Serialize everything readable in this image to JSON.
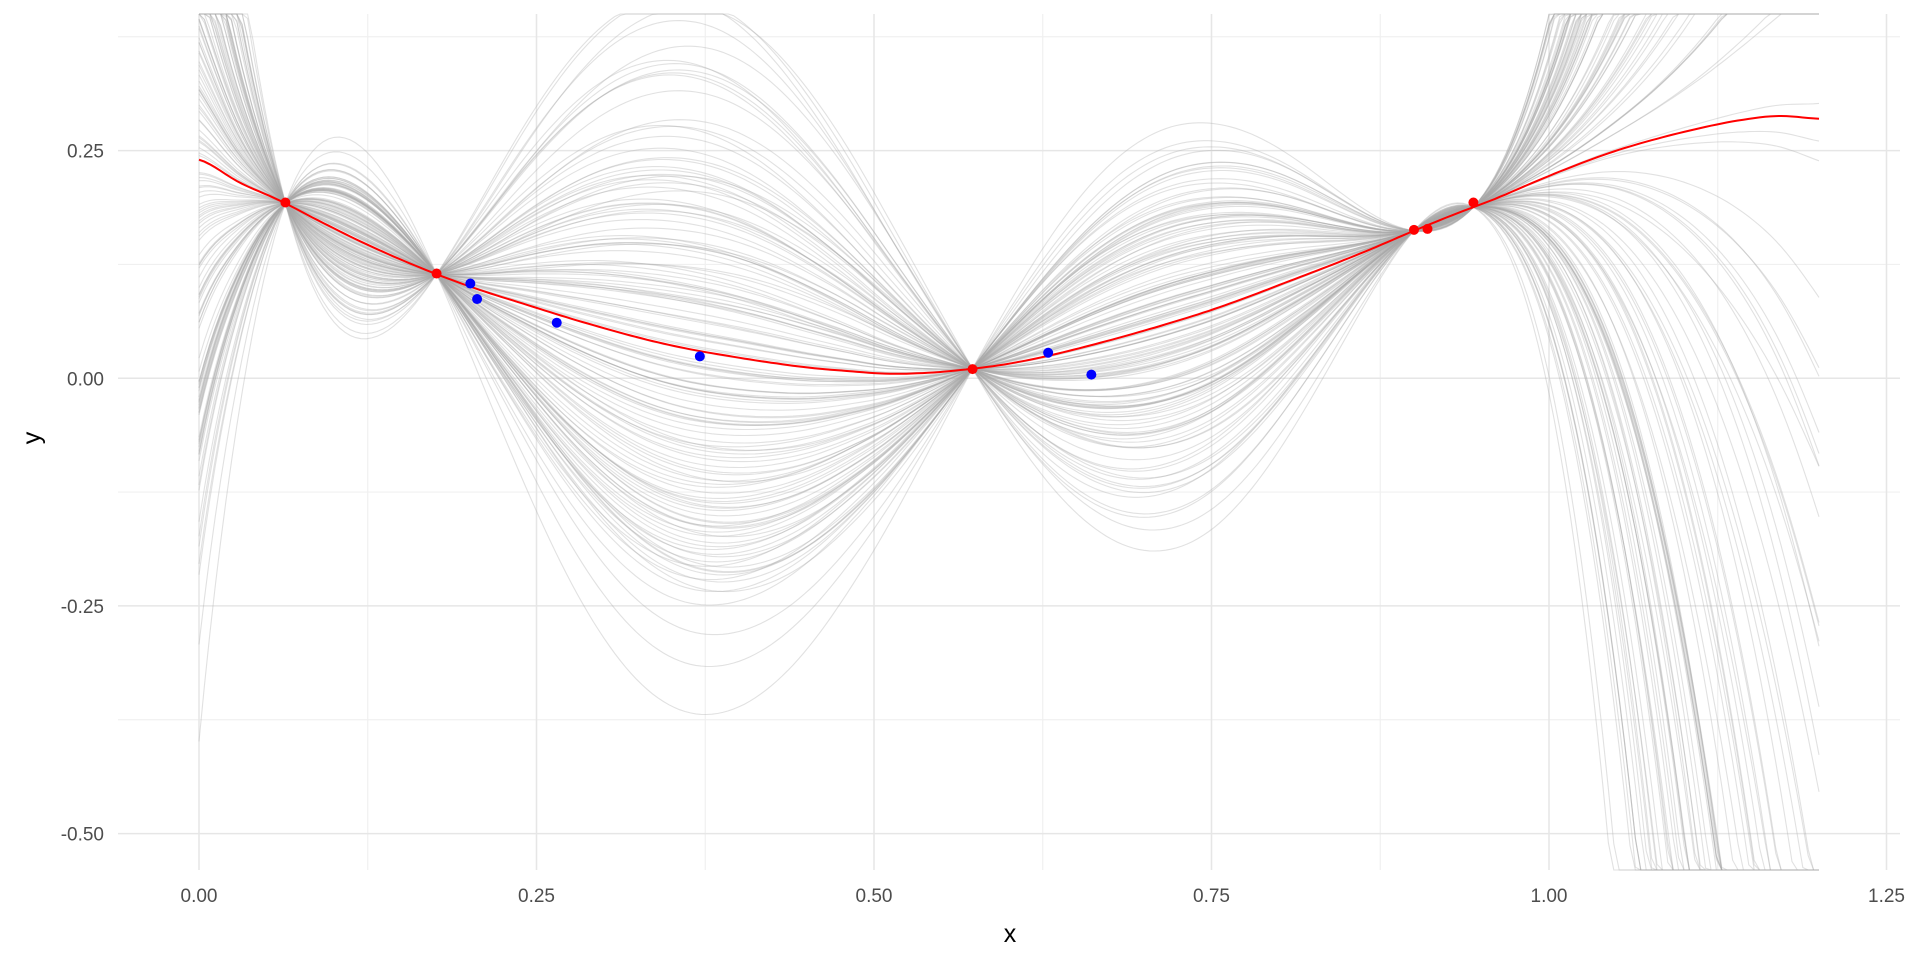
{
  "chart_data": {
    "type": "line",
    "title": "",
    "xlabel": "x",
    "ylabel": "y",
    "xlim": [
      -0.06,
      1.26
    ],
    "ylim": [
      -0.54,
      0.4
    ],
    "x_ticks": [
      {
        "value": 0.0,
        "label": "0.00"
      },
      {
        "value": 0.25,
        "label": "0.25"
      },
      {
        "value": 0.5,
        "label": "0.50"
      },
      {
        "value": 0.75,
        "label": "0.75"
      },
      {
        "value": 1.0,
        "label": "1.00"
      },
      {
        "value": 1.25,
        "label": "1.25"
      }
    ],
    "y_ticks": [
      {
        "value": -0.5,
        "label": "-0.50"
      },
      {
        "value": -0.25,
        "label": "-0.25"
      },
      {
        "value": 0.0,
        "label": "0.00"
      },
      {
        "value": 0.25,
        "label": "0.25"
      }
    ],
    "grid": true,
    "legend": "none",
    "x_range": [
      0.0,
      1.2
    ],
    "series": [
      {
        "role": "mean-fit",
        "color": "#ff0000",
        "x": [
          0.0,
          0.03,
          0.06,
          0.09,
          0.12,
          0.15,
          0.18,
          0.21,
          0.24,
          0.27,
          0.3,
          0.33,
          0.36,
          0.39,
          0.42,
          0.45,
          0.48,
          0.51,
          0.54,
          0.57,
          0.6,
          0.63,
          0.66,
          0.69,
          0.72,
          0.75,
          0.78,
          0.81,
          0.84,
          0.87,
          0.9,
          0.93,
          0.96,
          0.99,
          1.02,
          1.05,
          1.08,
          1.11,
          1.14,
          1.17,
          1.2
        ],
        "y": [
          0.24,
          0.215,
          0.195,
          0.172,
          0.15,
          0.13,
          0.112,
          0.096,
          0.082,
          0.068,
          0.055,
          0.043,
          0.033,
          0.025,
          0.018,
          0.012,
          0.008,
          0.005,
          0.006,
          0.01,
          0.016,
          0.025,
          0.036,
          0.048,
          0.061,
          0.075,
          0.091,
          0.108,
          0.125,
          0.143,
          0.162,
          0.18,
          0.197,
          0.216,
          0.234,
          0.25,
          0.263,
          0.274,
          0.283,
          0.288,
          0.285
        ]
      }
    ],
    "posterior_samples": {
      "color": "#a8a8a8",
      "count": 150,
      "anchor_x": [
        0.064,
        0.176,
        0.573,
        0.9,
        0.944
      ],
      "anchor_y": [
        0.193,
        0.115,
        0.01,
        0.163,
        0.193
      ]
    },
    "points": [
      {
        "role": "fixed-points",
        "color": "#ff0000",
        "x": [
          0.064,
          0.176,
          0.573,
          0.9,
          0.91,
          0.944
        ],
        "y": [
          0.193,
          0.115,
          0.01,
          0.163,
          0.164,
          0.193
        ]
      },
      {
        "role": "observed-points",
        "color": "#0000ff",
        "x": [
          0.201,
          0.206,
          0.265,
          0.371,
          0.629,
          0.661
        ],
        "y": [
          0.104,
          0.087,
          0.061,
          0.024,
          0.028,
          0.004
        ]
      }
    ]
  }
}
